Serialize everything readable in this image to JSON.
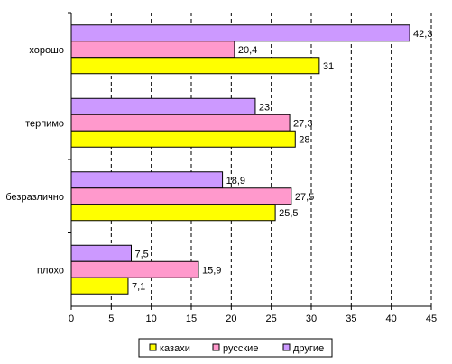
{
  "chart_data": {
    "type": "bar",
    "orientation": "horizontal",
    "categories": [
      "хорошо",
      "терпимо",
      "безразлично",
      "плохо"
    ],
    "series": [
      {
        "name": "другие",
        "color": "#CC99FF",
        "values": [
          42.3,
          23,
          18.9,
          7.5
        ],
        "labels": [
          "42,3",
          "23",
          "18,9",
          "7,5"
        ]
      },
      {
        "name": "русские",
        "color": "#FF99CC",
        "values": [
          20.4,
          27.3,
          27.5,
          15.9
        ],
        "labels": [
          "20,4",
          "27,3",
          "27,5",
          "15,9"
        ]
      },
      {
        "name": "казахи",
        "color": "#FFFF00",
        "values": [
          31,
          28,
          25.5,
          7.1
        ],
        "labels": [
          "31",
          "28",
          "25,5",
          "7,1"
        ]
      }
    ],
    "legend_order": [
      "казахи",
      "русские",
      "другие"
    ],
    "xlim": [
      0,
      45
    ],
    "xticks": [
      0,
      5,
      10,
      15,
      20,
      25,
      30,
      35,
      40,
      45
    ],
    "grid": "vertical-dashed",
    "legend_position": "bottom"
  }
}
